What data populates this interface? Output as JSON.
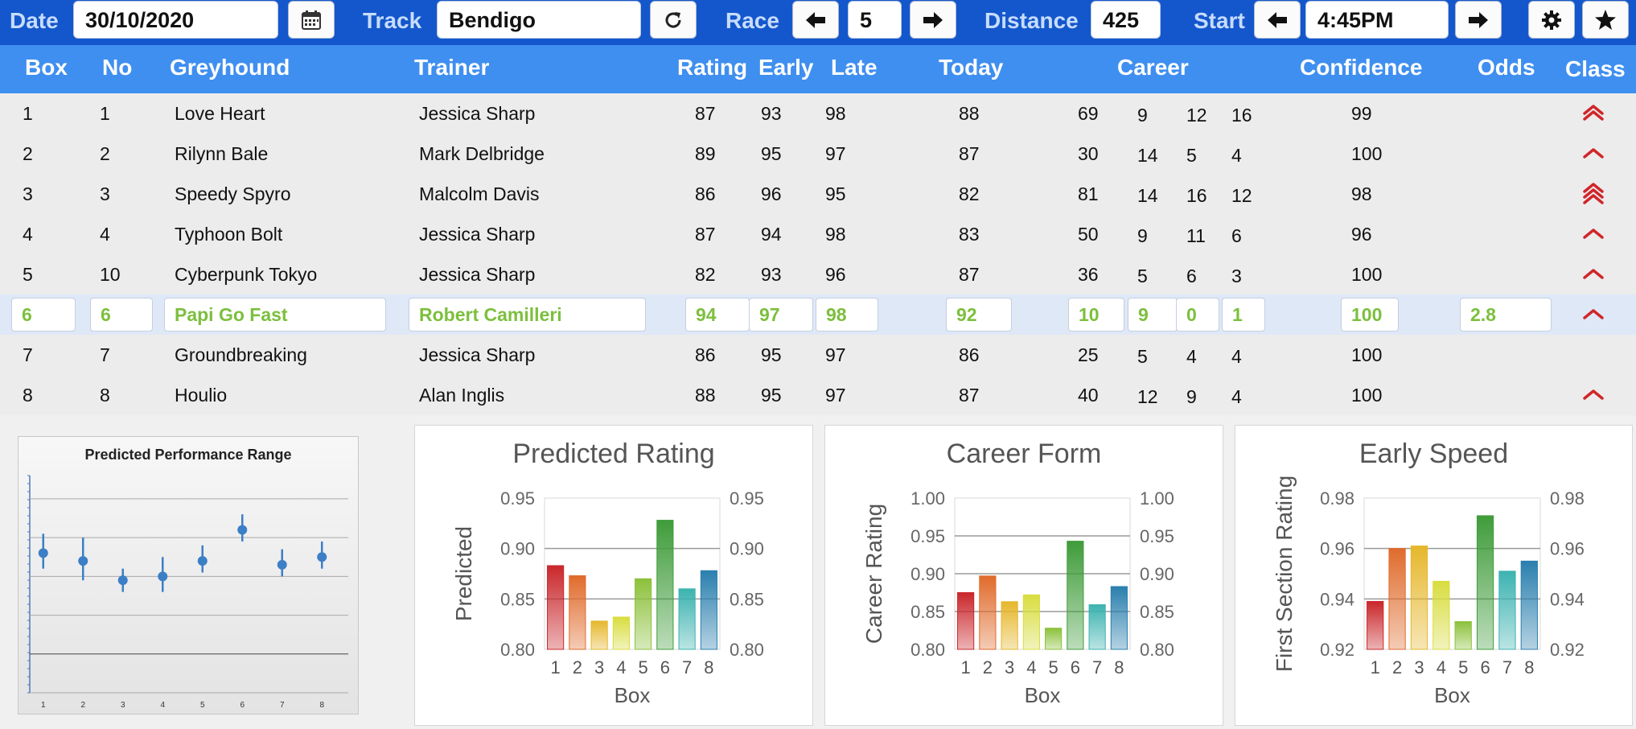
{
  "toolbar": {
    "date_label": "Date",
    "date_value": "30/10/2020",
    "track_label": "Track",
    "track_value": "Bendigo",
    "race_label": "Race",
    "race_value": "5",
    "distance_label": "Distance",
    "distance_value": "425",
    "start_label": "Start",
    "start_value": "4:45PM",
    "icons": [
      "calendar-icon",
      "refresh-icon",
      "arrow-left-icon",
      "arrow-right-icon",
      "gear-icon",
      "star-icon"
    ]
  },
  "columns": {
    "box": "Box",
    "no": "No",
    "greyhound": "Greyhound",
    "trainer": "Trainer",
    "rating": "Rating",
    "early": "Early",
    "late": "Late",
    "today": "Today",
    "career": "Career",
    "confidence": "Confidence",
    "odds": "Odds",
    "class": "Class"
  },
  "rows": [
    {
      "box": "1",
      "no": "1",
      "greyhound": "Love Heart",
      "trainer": "Jessica Sharp",
      "rating": "87",
      "early": "93",
      "late": "98",
      "today": "88",
      "career": [
        "69",
        "9",
        "12",
        "16"
      ],
      "confidence": "99",
      "odds": "",
      "class": "double-up"
    },
    {
      "box": "2",
      "no": "2",
      "greyhound": "Rilynn Bale",
      "trainer": "Mark Delbridge",
      "rating": "89",
      "early": "95",
      "late": "97",
      "today": "87",
      "career": [
        "30",
        "14",
        "5",
        "4"
      ],
      "confidence": "100",
      "odds": "",
      "class": "up"
    },
    {
      "box": "3",
      "no": "3",
      "greyhound": "Speedy Spyro",
      "trainer": "Malcolm Davis",
      "rating": "86",
      "early": "96",
      "late": "95",
      "today": "82",
      "career": [
        "81",
        "14",
        "16",
        "12"
      ],
      "confidence": "98",
      "odds": "",
      "class": "triple-up"
    },
    {
      "box": "4",
      "no": "4",
      "greyhound": "Typhoon Bolt",
      "trainer": "Jessica Sharp",
      "rating": "87",
      "early": "94",
      "late": "98",
      "today": "83",
      "career": [
        "50",
        "9",
        "11",
        "6"
      ],
      "confidence": "96",
      "odds": "",
      "class": "up"
    },
    {
      "box": "5",
      "no": "10",
      "greyhound": "Cyberpunk Tokyo",
      "trainer": "Jessica Sharp",
      "rating": "82",
      "early": "93",
      "late": "96",
      "today": "87",
      "career": [
        "36",
        "5",
        "6",
        "3"
      ],
      "confidence": "100",
      "odds": "",
      "class": "up"
    },
    {
      "box": "6",
      "no": "6",
      "greyhound": "Papi Go Fast",
      "trainer": "Robert Camilleri",
      "rating": "94",
      "early": "97",
      "late": "98",
      "today": "92",
      "career": [
        "10",
        "9",
        "0",
        "1"
      ],
      "confidence": "100",
      "odds": "2.8",
      "class": "up"
    },
    {
      "box": "7",
      "no": "7",
      "greyhound": "Groundbreaking",
      "trainer": "Jessica Sharp",
      "rating": "86",
      "early": "95",
      "late": "97",
      "today": "86",
      "career": [
        "25",
        "5",
        "4",
        "4"
      ],
      "confidence": "100",
      "odds": "",
      "class": "none"
    },
    {
      "box": "8",
      "no": "8",
      "greyhound": "Houlio",
      "trainer": "Alan Inglis",
      "rating": "88",
      "early": "95",
      "late": "97",
      "today": "87",
      "career": [
        "40",
        "12",
        "9",
        "4"
      ],
      "confidence": "100",
      "odds": "",
      "class": "up"
    }
  ],
  "selected_row": 5,
  "colors": {
    "toolbar_bg": "#1457cc",
    "header_bg": "#3f8ff0",
    "selected_text": "#7cbf3d",
    "class_arrow": "#d0262a",
    "bar_colors": [
      "#c9272b",
      "#e06b2c",
      "#e6b72c",
      "#d8dd3f",
      "#8cc13b",
      "#3f9c3a",
      "#3cb3b0",
      "#2a7fae"
    ]
  },
  "chart_data": [
    {
      "type": "scatter",
      "title": "Predicted Performance Range",
      "x": [
        1,
        2,
        3,
        4,
        5,
        6,
        7,
        8
      ],
      "y": [
        0.88,
        0.87,
        0.845,
        0.85,
        0.87,
        0.91,
        0.865,
        0.875
      ],
      "error_low": [
        0.86,
        0.845,
        0.83,
        0.83,
        0.855,
        0.895,
        0.85,
        0.86
      ],
      "error_high": [
        0.905,
        0.9,
        0.86,
        0.875,
        0.89,
        0.93,
        0.885,
        0.895
      ],
      "ylim": [
        0.7,
        0.98
      ],
      "grid": true
    },
    {
      "type": "bar",
      "title": "Predicted Rating",
      "categories": [
        "1",
        "2",
        "3",
        "4",
        "5",
        "6",
        "7",
        "8"
      ],
      "values": [
        0.883,
        0.873,
        0.828,
        0.832,
        0.87,
        0.928,
        0.86,
        0.878
      ],
      "xlabel": "Box",
      "ylabel": "Predicted",
      "ylim": [
        0.8,
        0.95
      ],
      "yticks": [
        "0.80",
        "0.85",
        "0.90",
        "0.95"
      ]
    },
    {
      "type": "bar",
      "title": "Career Form",
      "categories": [
        "1",
        "2",
        "3",
        "4",
        "5",
        "6",
        "7",
        "8"
      ],
      "values": [
        0.875,
        0.897,
        0.863,
        0.872,
        0.828,
        0.943,
        0.859,
        0.883
      ],
      "xlabel": "Box",
      "ylabel": "Career Rating",
      "ylim": [
        0.8,
        1.0
      ],
      "yticks": [
        "0.80",
        "0.85",
        "0.90",
        "0.95",
        "1.00"
      ]
    },
    {
      "type": "bar",
      "title": "Early Speed",
      "categories": [
        "1",
        "2",
        "3",
        "4",
        "5",
        "6",
        "7",
        "8"
      ],
      "values": [
        0.939,
        0.96,
        0.961,
        0.947,
        0.931,
        0.973,
        0.951,
        0.955
      ],
      "xlabel": "Box",
      "ylabel": "First Section Rating",
      "ylim": [
        0.92,
        0.98
      ],
      "yticks": [
        "0.92",
        "0.94",
        "0.96",
        "0.98"
      ]
    }
  ]
}
